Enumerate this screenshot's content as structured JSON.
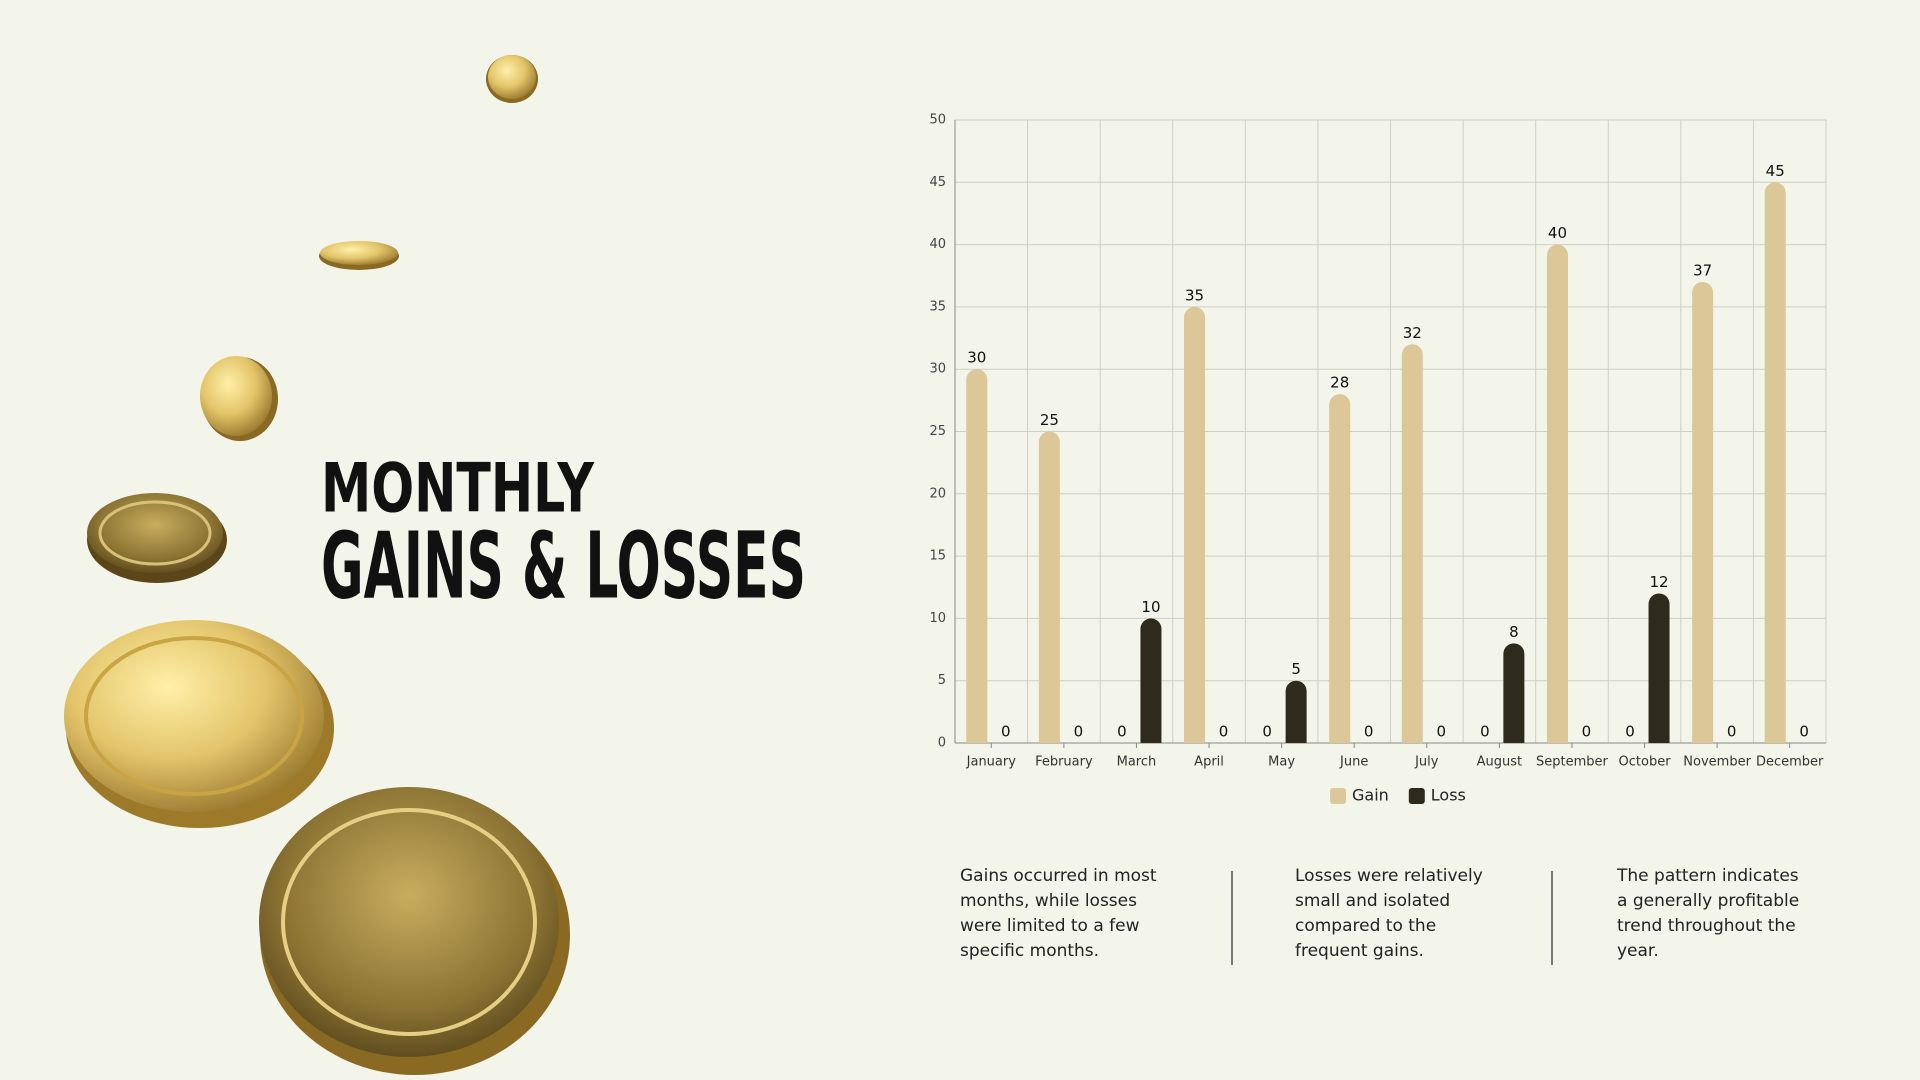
{
  "heading": {
    "line1": "MONTHLY",
    "line2": "GAINS & LOSSES"
  },
  "chart_data": {
    "type": "bar",
    "categories": [
      "January",
      "February",
      "March",
      "April",
      "May",
      "June",
      "July",
      "August",
      "September",
      "October",
      "November",
      "December"
    ],
    "series": [
      {
        "name": "Gain",
        "color": "#dbc797",
        "values": [
          30,
          25,
          0,
          35,
          0,
          28,
          32,
          0,
          40,
          0,
          37,
          45
        ]
      },
      {
        "name": "Loss",
        "color": "#2e2a1c",
        "values": [
          0,
          0,
          10,
          0,
          5,
          0,
          0,
          8,
          0,
          12,
          0,
          0
        ]
      }
    ],
    "ylim": [
      0,
      50
    ],
    "yticks": [
      0,
      5,
      10,
      15,
      20,
      25,
      30,
      35,
      40,
      45,
      50
    ],
    "grid": true,
    "legend": "bottom"
  },
  "notes": [
    "Gains occurred in most months, while losses were limited to a few specific months.",
    "Losses were relatively small and isolated compared to the frequent gains.",
    "The pattern indicates a generally profitable trend throughout the year."
  ]
}
